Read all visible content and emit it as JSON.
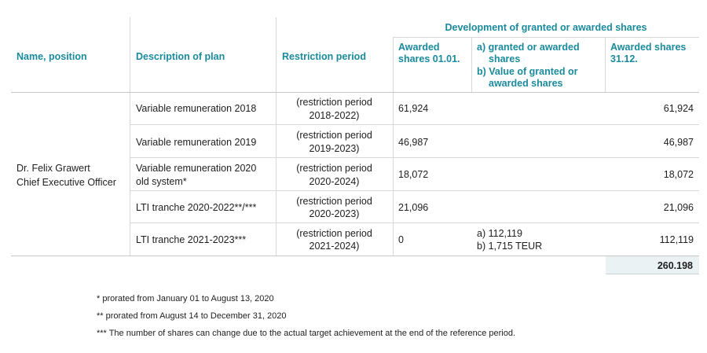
{
  "header": {
    "group_title": "Development of granted or awarded shares",
    "col_name": "Name, position",
    "col_plan": "Description of plan",
    "col_restriction": "Restriction period",
    "col_awarded_start_l1": "Awarded",
    "col_awarded_start_l2": "shares 01.01.",
    "col_granted_l1": "a) granted or awarded",
    "col_granted_l2": "shares",
    "col_granted_l3": "b) Value of granted or",
    "col_granted_l4": "awarded shares",
    "col_awarded_end_l1": "Awarded shares",
    "col_awarded_end_l2": "31.12."
  },
  "person": {
    "name": "Dr. Felix Grawert",
    "position": "Chief Executive Officer"
  },
  "rows": [
    {
      "plan_l1": "Variable remuneration 2018",
      "plan_l2": "",
      "restr_l1": "(restriction period",
      "restr_l2": "2018-2022)",
      "start": "61,924",
      "granted_a": "",
      "granted_b": "",
      "end": "61,924"
    },
    {
      "plan_l1": "Variable remuneration 2019",
      "plan_l2": "",
      "restr_l1": "(restriction period",
      "restr_l2": "2019-2023)",
      "start": "46,987",
      "granted_a": "",
      "granted_b": "",
      "end": "46,987"
    },
    {
      "plan_l1": "Variable remuneration 2020",
      "plan_l2": "old system*",
      "restr_l1": "(restriction period",
      "restr_l2": "2020-2024)",
      "start": "18,072",
      "granted_a": "",
      "granted_b": "",
      "end": "18,072"
    },
    {
      "plan_l1": "LTI tranche 2020-2022**/***",
      "plan_l2": "",
      "restr_l1": "(restriction period",
      "restr_l2": "2020-2023)",
      "start": "21,096",
      "granted_a": "",
      "granted_b": "",
      "end": "21,096"
    },
    {
      "plan_l1": "LTI tranche 2021-2023***",
      "plan_l2": "",
      "restr_l1": "(restriction period",
      "restr_l2": "2021-2024)",
      "start": "0",
      "granted_a": "a) 112,119",
      "granted_b": "b) 1,715 TEUR",
      "end": "112,119"
    }
  ],
  "total": "260.198",
  "footnotes": [
    "* prorated from January 01 to August 13, 2020",
    "** prorated from August 14 to December 31, 2020",
    "*** The number of shares can change due to the actual target achievement at the end of the reference period."
  ]
}
